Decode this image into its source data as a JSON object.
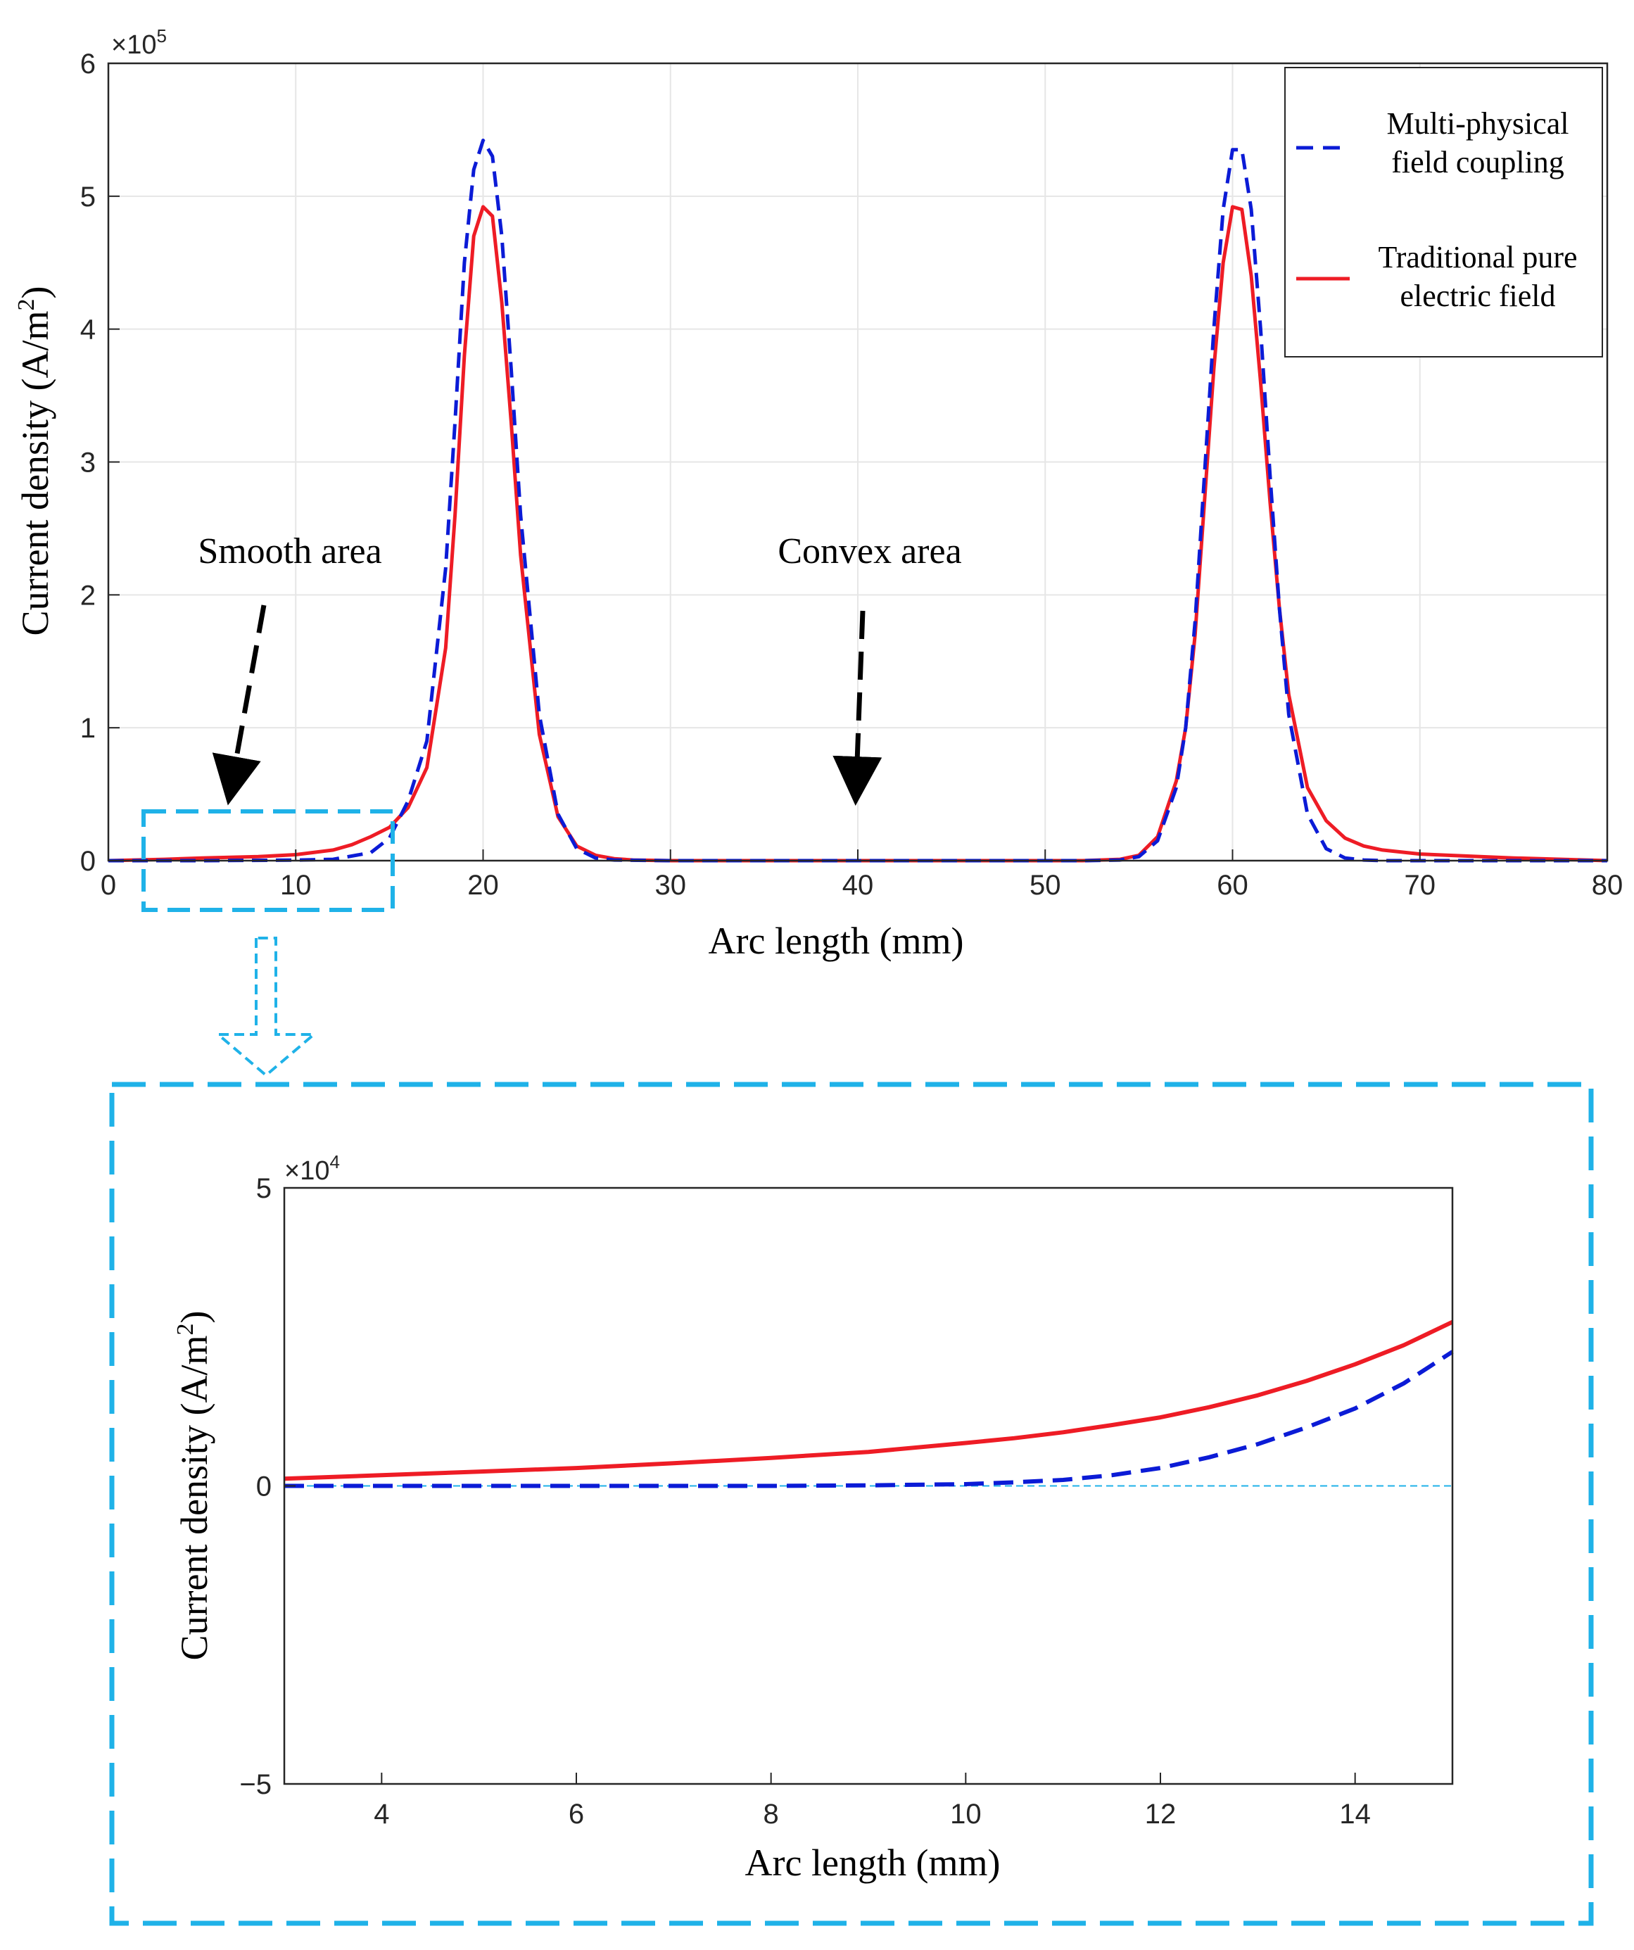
{
  "colors": {
    "multi": "#0b1bd6",
    "trad": "#ee1c25",
    "callout": "#1fb2e8",
    "axis": "#262626"
  },
  "chart_data": [
    {
      "id": "main",
      "type": "line",
      "multiplier": {
        "base": "×10",
        "exp": "5"
      },
      "xlabel": "Arc length (mm)",
      "ylabel_main": "Current density (A/m",
      "ylabel_sup": "2",
      "ylabel_close": ")",
      "xlim": [
        0,
        80
      ],
      "ylim": [
        0,
        6
      ],
      "x_ticks": [
        0,
        10,
        20,
        30,
        40,
        50,
        60,
        70,
        80
      ],
      "y_ticks": [
        0,
        1,
        2,
        3,
        4,
        5,
        6
      ],
      "legend": {
        "position": "top-right",
        "entries": [
          {
            "series": "multi",
            "line1": "Multi-physical",
            "line2": "field coupling"
          },
          {
            "series": "trad",
            "line1": "Traditional pure",
            "line2": "electric field"
          }
        ]
      },
      "annotations": {
        "smooth": "Smooth area",
        "convex": "Convex area"
      },
      "series": [
        {
          "name": "Multi-physical field coupling",
          "key": "multi",
          "style": "dashed",
          "x": [
            0,
            5,
            10,
            12,
            14,
            15,
            16,
            17,
            18,
            18.5,
            19,
            19.5,
            20,
            20.5,
            21,
            21.5,
            22,
            23,
            24,
            25,
            26,
            27,
            30,
            40,
            50,
            52,
            54,
            55,
            56,
            57,
            57.5,
            58,
            58.5,
            59,
            59.5,
            60,
            60.5,
            61,
            61.5,
            62,
            62.5,
            63,
            64,
            65,
            66,
            67,
            68,
            70,
            75,
            80
          ],
          "y": [
            0,
            0,
            0.004,
            0.01,
            0.06,
            0.17,
            0.45,
            0.9,
            2.2,
            3.3,
            4.5,
            5.2,
            5.42,
            5.3,
            4.7,
            3.7,
            2.6,
            1.1,
            0.35,
            0.09,
            0.02,
            0.005,
            0,
            0,
            0,
            0,
            0.005,
            0.03,
            0.15,
            0.55,
            1.0,
            1.8,
            2.9,
            4.0,
            4.9,
            5.35,
            5.35,
            4.9,
            4.0,
            2.9,
            1.9,
            1.1,
            0.35,
            0.09,
            0.02,
            0.005,
            0,
            0,
            0,
            0
          ]
        },
        {
          "name": "Traditional pure electric field",
          "key": "trad",
          "style": "solid",
          "x": [
            0,
            3,
            5,
            8,
            10,
            12,
            13,
            14,
            15,
            16,
            17,
            18,
            18.5,
            19,
            19.5,
            20,
            20.5,
            21,
            21.5,
            22,
            23,
            24,
            25,
            26,
            27,
            28,
            30,
            40,
            50,
            52,
            54,
            55,
            56,
            57,
            57.5,
            58,
            58.5,
            59,
            59.5,
            60,
            60.5,
            61,
            61.5,
            62,
            62.5,
            63,
            64,
            65,
            66,
            67,
            68,
            70,
            75,
            80
          ],
          "y": [
            0,
            0.01,
            0.02,
            0.03,
            0.045,
            0.08,
            0.12,
            0.18,
            0.25,
            0.4,
            0.7,
            1.6,
            2.6,
            3.8,
            4.7,
            4.92,
            4.85,
            4.2,
            3.3,
            2.3,
            0.95,
            0.33,
            0.11,
            0.04,
            0.015,
            0.005,
            0,
            0,
            0,
            0,
            0.01,
            0.04,
            0.18,
            0.6,
            1.0,
            1.7,
            2.7,
            3.7,
            4.5,
            4.92,
            4.9,
            4.4,
            3.6,
            2.7,
            1.9,
            1.25,
            0.55,
            0.3,
            0.17,
            0.11,
            0.08,
            0.05,
            0.02,
            0
          ]
        }
      ]
    },
    {
      "id": "inset",
      "type": "line",
      "multiplier": {
        "base": "×10",
        "exp": "4"
      },
      "xlabel": "Arc length (mm)",
      "ylabel_main": "Current density (A/m",
      "ylabel_sup": "2",
      "ylabel_close": ")",
      "xlim": [
        3,
        15
      ],
      "ylim": [
        -5,
        5
      ],
      "x_ticks": [
        4,
        6,
        8,
        10,
        12,
        14
      ],
      "y_ticks": [
        -5,
        0,
        5
      ],
      "y_tick_labels": [
        "−5",
        "0",
        "5"
      ],
      "reference_line": 0,
      "series": [
        {
          "name": "Multi-physical field coupling",
          "key": "multi",
          "style": "dashed",
          "x": [
            3,
            4,
            5,
            6,
            7,
            8,
            9,
            10,
            10.5,
            11,
            11.5,
            12,
            12.5,
            13,
            13.5,
            14,
            14.5,
            15
          ],
          "y": [
            0,
            0,
            0,
            0,
            0,
            0,
            0.01,
            0.03,
            0.06,
            0.1,
            0.18,
            0.3,
            0.48,
            0.7,
            0.98,
            1.3,
            1.72,
            2.25
          ]
        },
        {
          "name": "Traditional pure electric field",
          "key": "trad",
          "style": "solid",
          "x": [
            3,
            4,
            5,
            6,
            7,
            8,
            9,
            10,
            10.5,
            11,
            11.5,
            12,
            12.5,
            13,
            13.5,
            14,
            14.5,
            15
          ],
          "y": [
            0.12,
            0.18,
            0.24,
            0.3,
            0.38,
            0.47,
            0.57,
            0.72,
            0.8,
            0.9,
            1.02,
            1.15,
            1.32,
            1.52,
            1.76,
            2.04,
            2.36,
            2.75
          ]
        }
      ]
    }
  ]
}
